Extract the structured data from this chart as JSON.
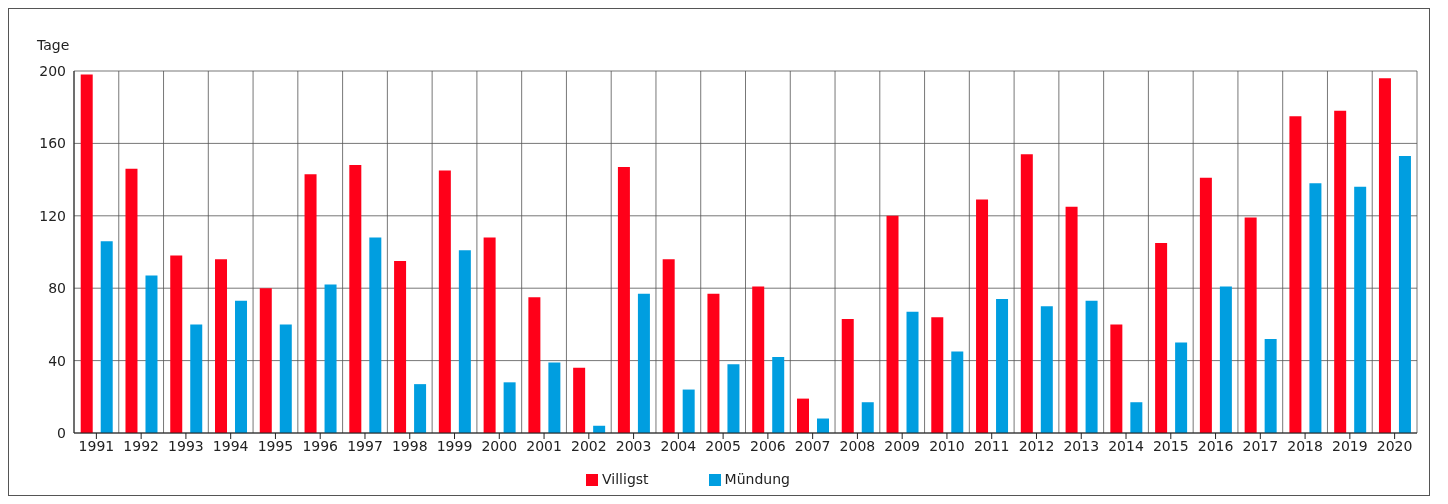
{
  "chart_data": {
    "type": "bar",
    "ylabel": "Tage",
    "categories": [
      "1991",
      "1992",
      "1993",
      "1994",
      "1995",
      "1996",
      "1997",
      "1998",
      "1999",
      "2000",
      "2001",
      "2002",
      "2003",
      "2004",
      "2005",
      "2006",
      "2007",
      "2008",
      "2009",
      "2010",
      "2011",
      "2012",
      "2013",
      "2014",
      "2015",
      "2016",
      "2017",
      "2018",
      "2019",
      "2020"
    ],
    "series": [
      {
        "name": "Villigst",
        "color": "#ff0019",
        "values": [
          198,
          146,
          98,
          96,
          80,
          143,
          148,
          95,
          145,
          108,
          75,
          36,
          147,
          96,
          77,
          81,
          19,
          63,
          120,
          64,
          129,
          154,
          125,
          60,
          105,
          141,
          119,
          175,
          178,
          196
        ]
      },
      {
        "name": "Mündung",
        "color": "#009ee0",
        "values": [
          106,
          87,
          60,
          73,
          60,
          82,
          108,
          27,
          101,
          28,
          39,
          4,
          77,
          24,
          38,
          42,
          8,
          17,
          67,
          45,
          74,
          70,
          73,
          17,
          50,
          81,
          52,
          138,
          136,
          153
        ]
      }
    ],
    "ylim": [
      0,
      200
    ],
    "yticks": [
      0,
      40,
      80,
      120,
      160,
      200
    ],
    "grid": true,
    "legend": "bottom"
  }
}
